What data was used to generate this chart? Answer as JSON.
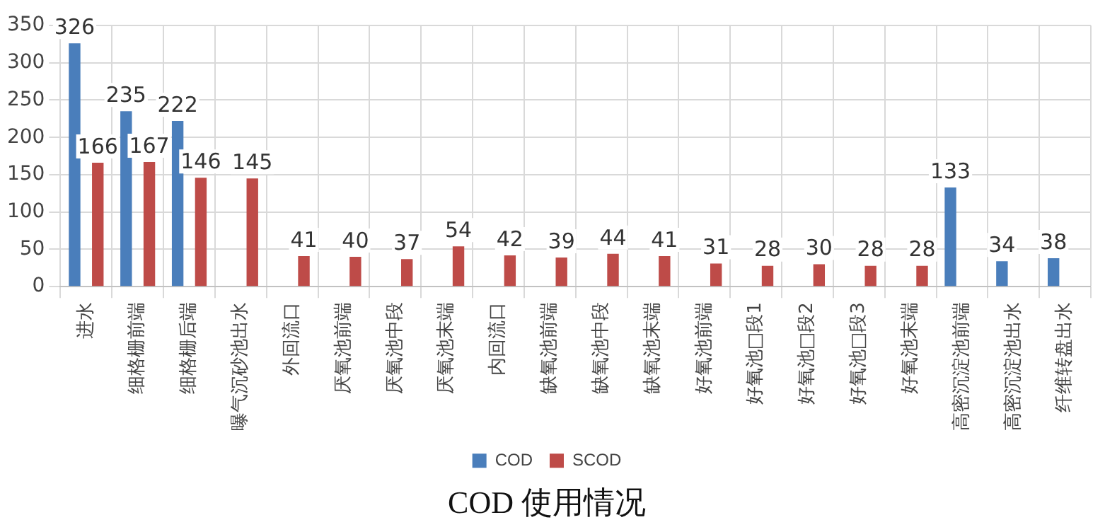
{
  "chart_data": {
    "type": "bar",
    "title": "COD 使用情况",
    "categories": [
      "进水",
      "细格栅前端",
      "细格栅后端",
      "曝气沉砂池出水",
      "外回流口",
      "厌氧池前端",
      "厌氧池中段",
      "厌氧池末端",
      "内回流口",
      "缺氧池前端",
      "缺氧池中段",
      "缺氧池末端",
      "好氧池前端",
      "好氧池□段1",
      "好氧池□段2",
      "好氧池□段3",
      "好氧池末端",
      "高密沉淀池前端",
      "高密沉淀池出水",
      "纤维转盘出水"
    ],
    "series": [
      {
        "name": "COD",
        "color": "#4a7ebb",
        "values": [
          326,
          235,
          222,
          null,
          null,
          null,
          null,
          null,
          null,
          null,
          null,
          null,
          null,
          null,
          null,
          null,
          null,
          133,
          34,
          38
        ]
      },
      {
        "name": "SCOD",
        "color": "#be4b48",
        "values": [
          166,
          167,
          146,
          145,
          41,
          40,
          37,
          54,
          42,
          39,
          44,
          41,
          31,
          28,
          30,
          28,
          28,
          null,
          null,
          null
        ]
      }
    ],
    "ylim": [
      0,
      350
    ],
    "yticks": [
      0,
      50,
      100,
      150,
      200,
      250,
      300,
      350
    ],
    "grid": true,
    "legend": "bottom",
    "data_labels": true
  }
}
